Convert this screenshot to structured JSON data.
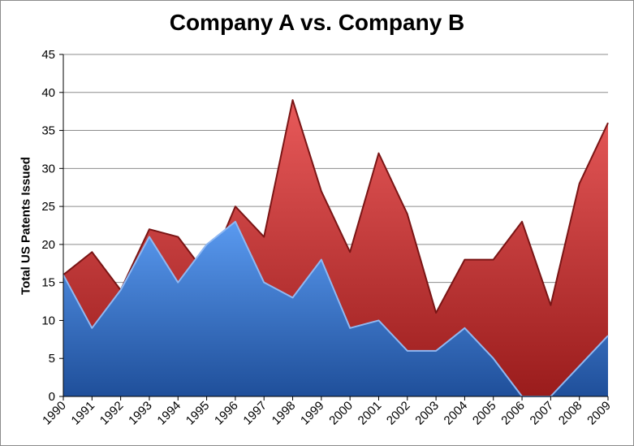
{
  "chart_data": {
    "type": "area",
    "title": "Company A vs. Company B",
    "xlabel": "",
    "ylabel": "Total US Patents Issued",
    "ylim": [
      0,
      45
    ],
    "yticks": [
      0,
      5,
      10,
      15,
      20,
      25,
      30,
      35,
      40,
      45
    ],
    "grid": true,
    "legend": "none",
    "categories": [
      "1990",
      "1991",
      "1992",
      "1993",
      "1994",
      "1995",
      "1996",
      "1997",
      "1998",
      "1999",
      "2000",
      "2001",
      "2002",
      "2003",
      "2004",
      "2005",
      "2006",
      "2007",
      "2008",
      "2009"
    ],
    "series": [
      {
        "color": "#c83a3a",
        "values": [
          16,
          19,
          14,
          22,
          21,
          16,
          25,
          21,
          39,
          27,
          19,
          32,
          24,
          11,
          18,
          18,
          23,
          12,
          28,
          36
        ]
      },
      {
        "color": "#3f7fd6",
        "values": [
          16,
          9,
          14,
          21,
          15,
          20,
          23,
          15,
          13,
          18,
          9,
          10,
          6,
          6,
          9,
          5,
          0,
          0,
          4,
          8
        ]
      }
    ]
  }
}
